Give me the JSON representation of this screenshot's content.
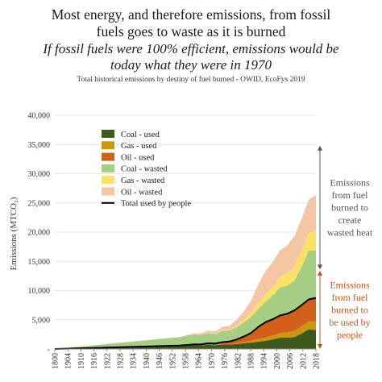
{
  "chart_data": {
    "type": "area",
    "title": "Most energy, and therefore emissions, from fossil fuels goes to waste as it is burned",
    "title_lines": [
      "Most energy, and therefore emissions, from fossil",
      "fuels goes to waste as it is burned"
    ],
    "subtitle": "If fossil fuels were 100% efficient, emissions would be today what they were in 1970",
    "subtitle_lines": [
      "If fossil fuels were 100% efficient, emissions would be",
      "today what they were in 1970"
    ],
    "source": "Total historical emissions by destiny of fuel burned - OWID, EcoFys 2019",
    "ylabel": "Emissions (MTCO₂)",
    "xlabel": "",
    "ylim": [
      0,
      40000
    ],
    "y_ticks": [
      "-",
      "5,000",
      "10,000",
      "15,000",
      "20,000",
      "25,000",
      "30,000",
      "35,000",
      "40,000"
    ],
    "x_ticks": [
      "1800",
      "1904",
      "1910",
      "1916",
      "1922",
      "1928",
      "1934",
      "1940",
      "1946",
      "1952",
      "1958",
      "1964",
      "1970",
      "1976",
      "1982",
      "1988",
      "1994",
      "2000",
      "2006",
      "2012",
      "2018"
    ],
    "grid": true,
    "legend_position": "top-left",
    "stacked": true,
    "x": [
      1800,
      1904,
      1910,
      1916,
      1922,
      1928,
      1934,
      1940,
      1946,
      1952,
      1958,
      1964,
      1970,
      1976,
      1982,
      1988,
      1994,
      2000,
      2006,
      2012,
      2018
    ],
    "series": [
      {
        "name": "Coal - used",
        "color": "#3d5a1e",
        "values": [
          0,
          560,
          620,
          680,
          640,
          700,
          640,
          770,
          760,
          850,
          990,
          1110,
          1240,
          1400,
          1640,
          1930,
          1930,
          2040,
          2640,
          3380,
          3240
        ]
      },
      {
        "name": "Gas - used",
        "color": "#c79a0d",
        "values": [
          0,
          0,
          10,
          15,
          20,
          30,
          40,
          60,
          90,
          130,
          200,
          300,
          450,
          550,
          650,
          800,
          900,
          1050,
          1200,
          1350,
          1500
        ]
      },
      {
        "name": "Oil - used",
        "color": "#d35f1c",
        "values": [
          0,
          20,
          50,
          80,
          140,
          230,
          250,
          350,
          420,
          650,
          950,
          1350,
          2100,
          2650,
          2800,
          3000,
          3200,
          3500,
          3650,
          3750,
          4000
        ]
      },
      {
        "name": "Coal - wasted",
        "color": "#a6cf85",
        "values": [
          0,
          1440,
          1580,
          1720,
          1620,
          1780,
          1620,
          1930,
          1880,
          2120,
          2460,
          2800,
          3100,
          3500,
          4100,
          4800,
          4800,
          5100,
          6600,
          8400,
          8100
        ]
      },
      {
        "name": "Gas - wasted",
        "color": "#fbe267",
        "values": [
          0,
          10,
          20,
          35,
          50,
          70,
          100,
          140,
          210,
          300,
          450,
          700,
          1050,
          1250,
          1450,
          1800,
          2050,
          2350,
          2700,
          3000,
          3400
        ]
      },
      {
        "name": "Oil - wasted",
        "color": "#f5c6a3",
        "values": [
          0,
          30,
          70,
          120,
          200,
          340,
          370,
          520,
          620,
          980,
          1450,
          2050,
          3200,
          4000,
          4250,
          4550,
          4850,
          5250,
          5500,
          5700,
          6100
        ]
      }
    ],
    "total_used_series": {
      "name": "Total used by people",
      "color": "#000000",
      "values": [
        0,
        580,
        680,
        775,
        800,
        960,
        930,
        1180,
        1270,
        1630,
        2140,
        2760,
        3790,
        4600,
        5090,
        5730,
        6030,
        6590,
        7490,
        8480,
        8740
      ]
    },
    "annotations": [
      {
        "text": "Emissions from fuel burned to create wasted heat",
        "lines": [
          "Emissions",
          "from fuel",
          "burned to",
          "create",
          "wasted heat"
        ],
        "color": "#555555",
        "y_range": [
          13600,
          34800
        ]
      },
      {
        "text": "Emissions from fuel burned to be used by people",
        "lines": [
          "Emissions",
          "from fuel",
          "burned to",
          "be used by",
          "people"
        ],
        "color": "#c0561b",
        "y_range": [
          0,
          13400
        ]
      }
    ]
  }
}
